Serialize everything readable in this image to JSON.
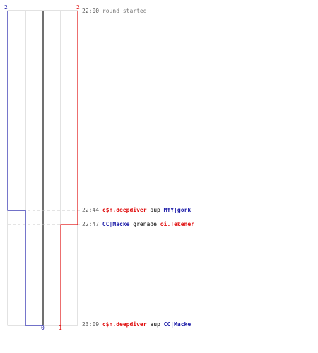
{
  "colors": {
    "team_blue": "#1c1ca8",
    "team_red": "#e01010",
    "grid": "#c6c6c6",
    "center_line": "#707070",
    "marker_dash": "#c8c8c8"
  },
  "team_counts": {
    "top_blue": "2",
    "top_red": "2",
    "bottom_blue": "0",
    "bottom_red": "1"
  },
  "events": [
    {
      "time": "22:00",
      "message": "round started"
    },
    {
      "time": "22:44",
      "attacker": "c$n.deepdiver",
      "attacker_team": "red",
      "weapon": "aup",
      "victim": "MfY|gork",
      "victim_team": "blue"
    },
    {
      "time": "22:47",
      "attacker": "CC|Macke",
      "attacker_team": "blue",
      "weapon": "grenade",
      "victim": "oi.Tekener",
      "victim_team": "red"
    },
    {
      "time": "23:09",
      "attacker": "c$n.deepdiver",
      "attacker_team": "red",
      "weapon": "aup",
      "victim": "CC|Macke",
      "victim_team": "blue"
    }
  ]
}
